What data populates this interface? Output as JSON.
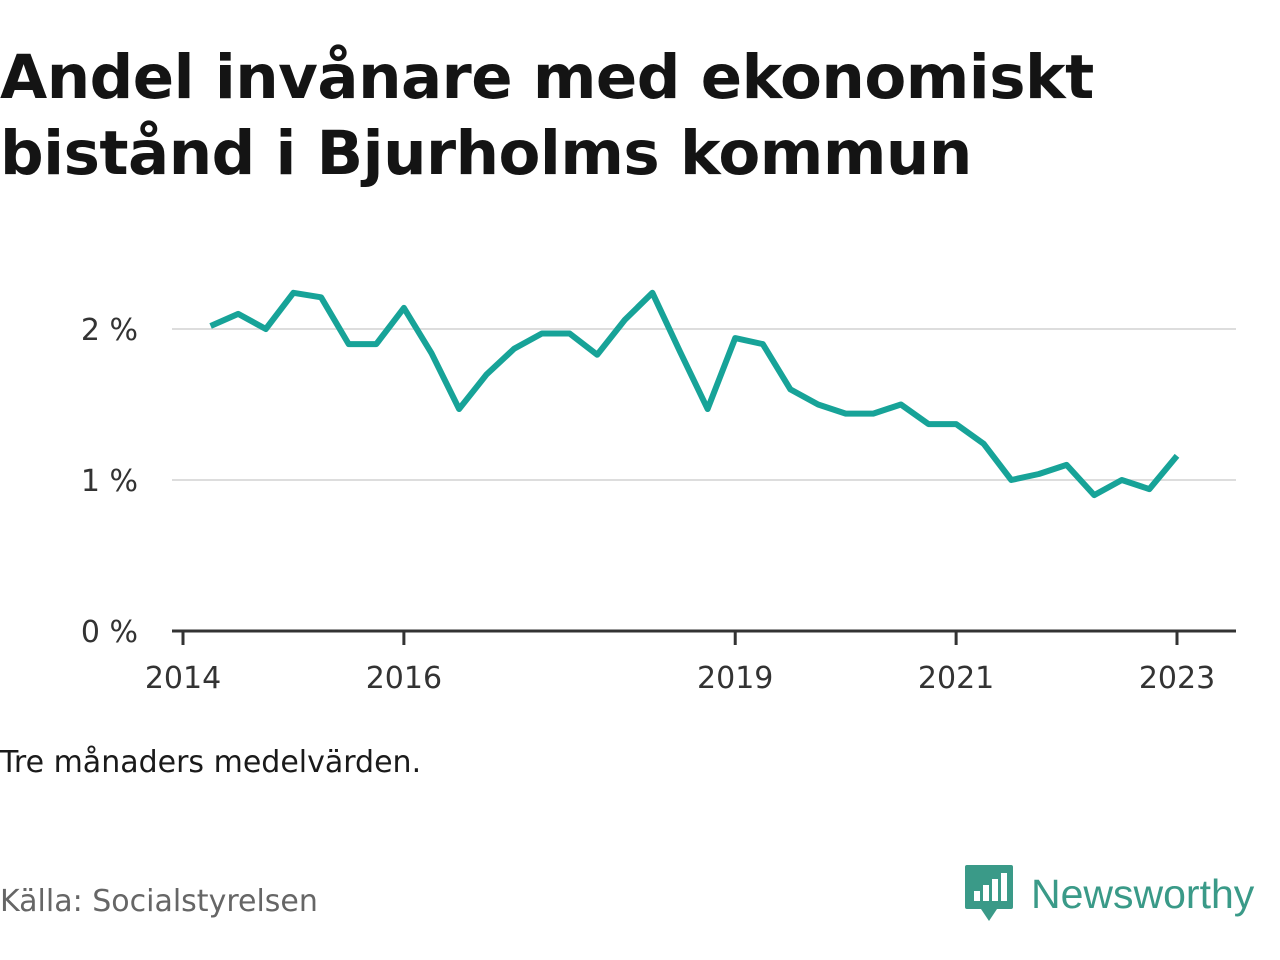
{
  "title": "Andel invånare med ekonomiskt bistånd i Bjurholms kommun",
  "note": "Tre månaders medelvärden.",
  "source": "Källa: Socialstyrelsen",
  "brand": {
    "name": "Newsworthy",
    "icon": "newsworthy-logo-icon",
    "color": "#3a9a88"
  },
  "chart_data": {
    "type": "line",
    "title": "Andel invånare med ekonomiskt bistånd i Bjurholms kommun",
    "xlabel": "",
    "ylabel": "",
    "ylim": [
      0,
      2.5
    ],
    "yticks": [
      0,
      1,
      2
    ],
    "ytick_labels": [
      "0 %",
      "1 %",
      "2 %"
    ],
    "xlim": [
      2014.0,
      2023.5
    ],
    "xticks": [
      2014,
      2016,
      2019,
      2021,
      2023
    ],
    "xtick_labels": [
      "2014",
      "2016",
      "2019",
      "2021",
      "2023"
    ],
    "grid": true,
    "legend": "none",
    "line_color": "#17a398",
    "series": [
      {
        "x": [
          2014.25,
          2014.5,
          2014.75,
          2015.0,
          2015.25,
          2015.5,
          2015.75,
          2016.0,
          2016.25,
          2016.5,
          2016.75,
          2017.0,
          2017.25,
          2017.5,
          2017.75,
          2018.0,
          2018.25,
          2018.5,
          2018.75,
          2019.0,
          2019.25,
          2019.5,
          2019.75,
          2020.0,
          2020.25,
          2020.5,
          2020.75,
          2021.0,
          2021.25,
          2021.5,
          2021.75,
          2022.0,
          2022.25,
          2022.5,
          2022.75,
          2023.0
        ],
        "values": [
          2.02,
          2.1,
          2.0,
          2.24,
          2.21,
          1.9,
          1.9,
          2.14,
          1.84,
          1.47,
          1.7,
          1.87,
          1.97,
          1.97,
          1.83,
          2.06,
          2.24,
          1.85,
          1.47,
          1.94,
          1.9,
          1.6,
          1.5,
          1.44,
          1.44,
          1.5,
          1.37,
          1.37,
          1.24,
          1.0,
          1.04,
          1.1,
          0.9,
          1.0,
          0.94,
          1.16
        ]
      }
    ]
  }
}
